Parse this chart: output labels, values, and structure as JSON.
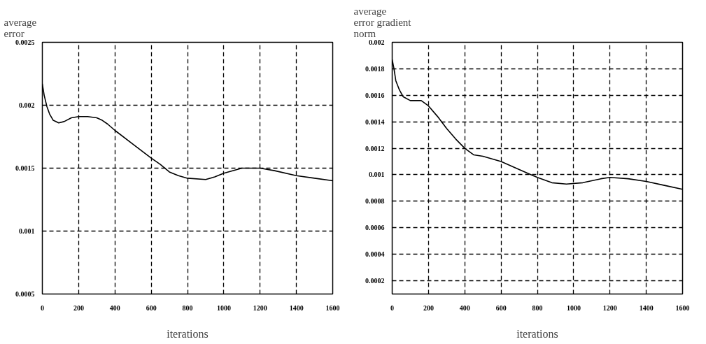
{
  "chart_data": [
    {
      "type": "line",
      "ylabel": "average\nerror",
      "xlabel": "iterations",
      "xlim": [
        0,
        1600
      ],
      "xticks": [
        0,
        200,
        400,
        600,
        800,
        1000,
        1200,
        1400,
        1600
      ],
      "ylim": [
        0.0005,
        0.0025
      ],
      "yticks": [
        0.0005,
        0.001,
        0.0015,
        0.002,
        0.0025
      ],
      "grid": true,
      "line_style": "solid",
      "series": [
        {
          "color": "#000000",
          "x": [
            0,
            10,
            25,
            40,
            60,
            90,
            120,
            160,
            200,
            250,
            300,
            330,
            360,
            400,
            500,
            600,
            650,
            700,
            750,
            800,
            900,
            950,
            1000,
            1100,
            1200,
            1280,
            1400,
            1500,
            1600
          ],
          "values": [
            0.00217,
            0.00208,
            0.00199,
            0.00193,
            0.00188,
            0.00186,
            0.00187,
            0.0019,
            0.00191,
            0.00191,
            0.0019,
            0.00188,
            0.00185,
            0.0018,
            0.00169,
            0.00158,
            0.00153,
            0.00147,
            0.00144,
            0.00142,
            0.00141,
            0.00143,
            0.00146,
            0.0015,
            0.0015,
            0.00148,
            0.00144,
            0.00142,
            0.0014
          ]
        }
      ]
    },
    {
      "type": "line",
      "ylabel": "average\nerror gradient\nnorm",
      "xlabel": "iterations",
      "xlim": [
        0,
        1600
      ],
      "xticks": [
        0,
        200,
        400,
        600,
        800,
        1000,
        1200,
        1400,
        1600
      ],
      "ylim": [
        0.0001,
        0.002
      ],
      "yticks": [
        0.0002,
        0.0004,
        0.0006,
        0.0008,
        0.001,
        0.0012,
        0.0014,
        0.0016,
        0.0018,
        0.002
      ],
      "grid": true,
      "line_style": "solid",
      "series": [
        {
          "color": "#000000",
          "x": [
            0,
            10,
            20,
            40,
            60,
            100,
            160,
            200,
            250,
            300,
            350,
            400,
            450,
            500,
            600,
            700,
            800,
            880,
            960,
            1050,
            1150,
            1200,
            1300,
            1400,
            1500,
            1600
          ],
          "values": [
            0.00187,
            0.0018,
            0.00171,
            0.00164,
            0.00159,
            0.00156,
            0.00156,
            0.00152,
            0.00144,
            0.00135,
            0.00127,
            0.0012,
            0.00115,
            0.00114,
            0.0011,
            0.00104,
            0.00098,
            0.00094,
            0.00093,
            0.00094,
            0.00097,
            0.00098,
            0.00097,
            0.00095,
            0.00092,
            0.00089
          ]
        }
      ]
    }
  ]
}
